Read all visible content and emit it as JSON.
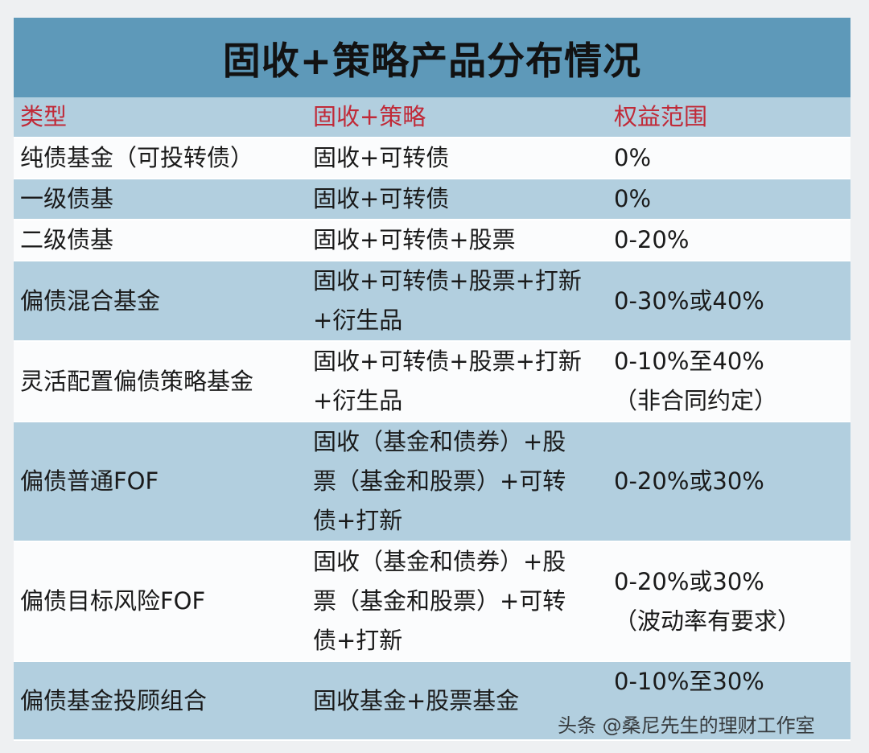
{
  "title": "固收+策略产品分布情况",
  "headers": [
    "类型",
    "固收+策略",
    "权益范围"
  ],
  "rows": [
    {
      "type": "纯债基金（可投转债）",
      "strategy": [
        "固收+可转债"
      ],
      "equity": [
        "0%"
      ]
    },
    {
      "type": "一级债基",
      "strategy": [
        "固收+可转债"
      ],
      "equity": [
        "0%"
      ]
    },
    {
      "type": "二级债基",
      "strategy": [
        "固收+可转债+股票"
      ],
      "equity": [
        "0-20%"
      ]
    },
    {
      "type": "偏债混合基金",
      "strategy": [
        "固收+可转债+股票+打新",
        "+衍生品"
      ],
      "equity": [
        "0-30%或40%"
      ]
    },
    {
      "type": "灵活配置偏债策略基金",
      "strategy": [
        "固收+可转债+股票+打新",
        "+衍生品"
      ],
      "equity": [
        "0-10%至40%",
        "（非合同约定）"
      ]
    },
    {
      "type": "偏债普通FOF",
      "strategy": [
        "固收（基金和债券）+股",
        "票（基金和股票）+可转",
        "债+打新"
      ],
      "equity": [
        "0-20%或30%"
      ]
    },
    {
      "type": "偏债目标风险FOF",
      "strategy": [
        "固收（基金和债券）+股",
        "票（基金和股票）+可转",
        "债+打新"
      ],
      "equity": [
        "0-20%或30%",
        "（波动率有要求）"
      ]
    },
    {
      "type": "偏债基金投顾组合",
      "strategy": [
        "固收基金+股票基金"
      ],
      "equity": [
        "0-10%至30%"
      ]
    }
  ],
  "watermark": "头条 @桑尼先生的理财工作室"
}
